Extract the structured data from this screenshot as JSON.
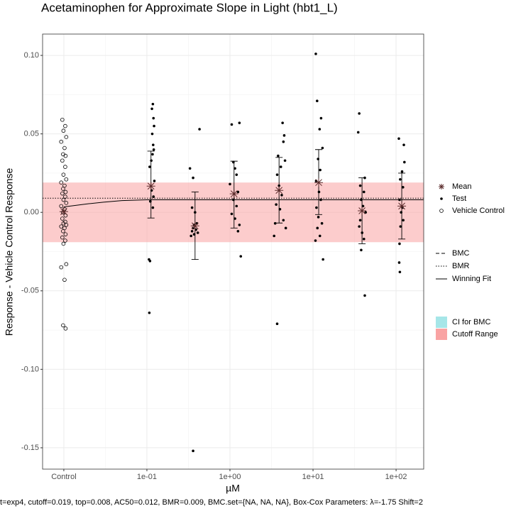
{
  "chart_data": {
    "type": "scatter",
    "title": "Acetaminophen for Approximate Slope in Light (hbt1_L)",
    "x_label": "µM",
    "y_label": "Response - Vehicle Control Response",
    "caption": "t=exp4, cutoff=0.019, top=0.008, AC50=0.012, BMR=0.009, BMC.set={NA, NA, NA}, Box-Cox Parameters: λ=-1.75 Shift=2",
    "xscale": "log",
    "xlim": [
      0.00555,
      215
    ],
    "ylim": [
      -0.1636,
      0.1136
    ],
    "xticks": [
      {
        "value": 0.01,
        "label": "Control"
      },
      {
        "value": 0.1,
        "label": "1e-01"
      },
      {
        "value": 1,
        "label": "1e+00"
      },
      {
        "value": 10,
        "label": "1e+01"
      },
      {
        "value": 100,
        "label": "1e+02"
      }
    ],
    "yticks": [
      {
        "value": -0.15,
        "label": "-0.15"
      },
      {
        "value": -0.1,
        "label": "-0.10"
      },
      {
        "value": -0.05,
        "label": "-0.05"
      },
      {
        "value": 0,
        "label": "0.00"
      },
      {
        "value": 0.05,
        "label": "0.05"
      },
      {
        "value": 0.1,
        "label": "0.10"
      }
    ],
    "grid": true,
    "series": [
      {
        "name": "Mean",
        "marker": "asterisk",
        "color": "#5a2a2a",
        "x": [
          0.01,
          0.112,
          0.38,
          1.12,
          3.9,
          11.7,
          38.9,
          117
        ],
        "y": [
          0.0005,
          0.0167,
          -0.0086,
          0.0118,
          0.014,
          0.019,
          0.001,
          0.004
        ],
        "lower": [
          null,
          -0.0036,
          -0.03,
          -0.01,
          -0.0068,
          -0.0014,
          -0.02,
          -0.017
        ],
        "upper": [
          null,
          0.039,
          0.013,
          0.0326,
          0.035,
          0.04,
          0.022,
          0.025
        ]
      },
      {
        "name": "Test",
        "marker": "dot",
        "color": "#000000",
        "x": [
          0.118,
          0.115,
          0.12,
          0.122,
          0.116,
          0.119,
          0.121,
          0.117,
          0.113,
          0.108,
          0.123,
          0.114,
          0.12,
          0.11,
          0.118,
          0.106,
          0.109,
          0.107,
          0.43,
          0.33,
          0.36,
          0.35,
          0.38,
          0.4,
          0.37,
          0.36,
          0.39,
          0.35,
          0.41,
          0.37,
          0.34,
          0.36,
          1.3,
          1.05,
          1.1,
          1.15,
          1.2,
          1.0,
          1.25,
          1.1,
          1.2,
          1.05,
          1.15,
          1.3,
          1.25,
          1.35,
          4.3,
          4.5,
          4.4,
          3.8,
          4.6,
          4.1,
          3.7,
          3.9,
          4.2,
          3.6,
          4.0,
          4.4,
          3.5,
          4.7,
          3.4,
          3.7,
          10.8,
          11.2,
          12.5,
          12.0,
          13.0,
          11.5,
          12.2,
          10.9,
          11.8,
          12.4,
          11.0,
          11.6,
          12.8,
          11.3,
          12.1,
          10.7,
          13.2,
          36,
          35,
          42,
          37,
          41,
          38,
          40,
          43,
          37,
          36,
          39,
          41,
          38,
          42,
          108,
          124,
          126,
          118,
          112,
          121,
          110,
          119,
          115,
          122,
          113,
          110,
          109,
          111
        ],
        "y": [
          0.069,
          0.066,
          0.06,
          0.055,
          0.05,
          0.043,
          0.04,
          0.037,
          0.033,
          0.029,
          0.02,
          0.014,
          0.01,
          0.007,
          0.003,
          -0.03,
          -0.031,
          -0.064,
          0.053,
          0.028,
          0.022,
          0.003,
          0.0,
          -0.007,
          -0.008,
          -0.01,
          -0.011,
          -0.012,
          -0.013,
          -0.014,
          -0.015,
          -0.152,
          0.057,
          0.056,
          0.032,
          0.028,
          0.024,
          0.018,
          0.013,
          0.008,
          0.004,
          -0.001,
          -0.004,
          -0.008,
          -0.012,
          -0.028,
          0.057,
          0.049,
          0.045,
          0.036,
          0.033,
          0.029,
          0.024,
          0.017,
          0.011,
          0.005,
          0.002,
          -0.005,
          -0.007,
          -0.01,
          -0.015,
          -0.071,
          0.101,
          0.071,
          0.06,
          0.053,
          0.041,
          0.034,
          0.027,
          0.02,
          0.013,
          0.008,
          0.003,
          -0.003,
          -0.007,
          -0.01,
          -0.015,
          -0.018,
          -0.03,
          0.063,
          0.051,
          0.022,
          0.017,
          0.013,
          0.008,
          0.004,
          0.0,
          -0.005,
          -0.009,
          -0.013,
          -0.017,
          -0.024,
          -0.053,
          0.047,
          0.043,
          0.032,
          0.026,
          0.021,
          0.016,
          0.008,
          0.003,
          0.0,
          -0.005,
          -0.009,
          -0.02,
          -0.032,
          -0.038
        ]
      },
      {
        "name": "Vehicle Control",
        "marker": "open-circle",
        "color": "#000000",
        "x": [
          0.0096,
          0.0104,
          0.0099,
          0.0107,
          0.0093,
          0.0102,
          0.0098,
          0.0105,
          0.0096,
          0.0104,
          0.0099,
          0.0107,
          0.0093,
          0.0102,
          0.0098,
          0.0105,
          0.0096,
          0.0104,
          0.0099,
          0.0107,
          0.0093,
          0.0102,
          0.0098,
          0.0105,
          0.0096,
          0.0104,
          0.0099,
          0.0107,
          0.0093,
          0.0102,
          0.0098,
          0.0105,
          0.0096,
          0.0104,
          0.0099,
          0.0107,
          0.0093,
          0.0102,
          0.0098,
          0.0105
        ],
        "y": [
          0.059,
          0.055,
          0.052,
          0.048,
          0.045,
          0.041,
          0.037,
          0.036,
          0.033,
          0.029,
          0.024,
          0.021,
          0.019,
          0.017,
          0.015,
          0.013,
          0.012,
          0.01,
          0.008,
          0.006,
          0.004,
          0.002,
          0.0,
          -0.002,
          -0.004,
          -0.006,
          -0.007,
          -0.008,
          -0.009,
          -0.01,
          -0.012,
          -0.014,
          -0.016,
          -0.018,
          -0.02,
          -0.033,
          -0.035,
          -0.043,
          -0.072,
          -0.074
        ]
      }
    ],
    "lines": [
      {
        "name": "BMC",
        "style": "dashed"
      },
      {
        "name": "BMR",
        "style": "dotted",
        "value": 0.009
      },
      {
        "name": "Winning Fit",
        "style": "solid",
        "x": [
          0.01,
          0.015,
          0.02,
          0.03,
          0.05,
          0.1,
          1,
          10,
          100,
          215
        ],
        "y": [
          0.0035,
          0.0047,
          0.0055,
          0.0065,
          0.0075,
          0.008,
          0.008,
          0.008,
          0.008,
          0.008
        ]
      }
    ],
    "fills": [
      {
        "name": "CI for BMC",
        "color": "#a6e6e8"
      },
      {
        "name": "Cutoff Range",
        "color": "#f9a3a3",
        "range": [
          -0.019,
          0.019
        ]
      }
    ]
  }
}
